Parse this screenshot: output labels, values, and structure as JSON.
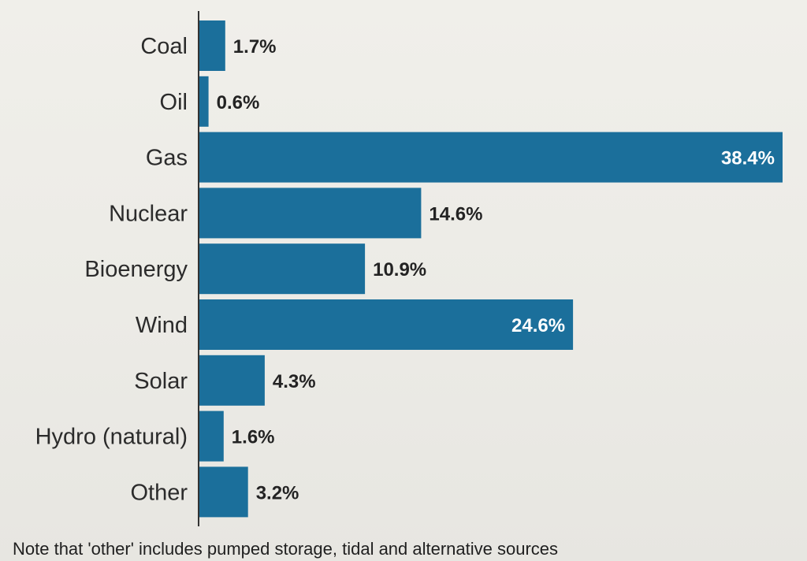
{
  "chart_data": {
    "type": "bar",
    "orientation": "horizontal",
    "title": "",
    "xlabel": "",
    "ylabel": "",
    "categories": [
      "Coal",
      "Oil",
      "Gas",
      "Nuclear",
      "Bioenergy",
      "Wind",
      "Solar",
      "Hydro (natural)",
      "Other"
    ],
    "values": [
      1.7,
      0.6,
      38.4,
      14.6,
      10.9,
      24.6,
      4.3,
      1.6,
      3.2
    ],
    "value_labels": [
      "1.7%",
      "0.6%",
      "38.4%",
      "14.6%",
      "10.9%",
      "24.6%",
      "4.3%",
      "1.6%",
      "3.2%"
    ],
    "unit": "%",
    "xlim": [
      0,
      38.4
    ],
    "grid": false,
    "bar_color": "#1b6f9b"
  },
  "note": "Note that 'other' includes pumped storage, tidal and alternative sources"
}
